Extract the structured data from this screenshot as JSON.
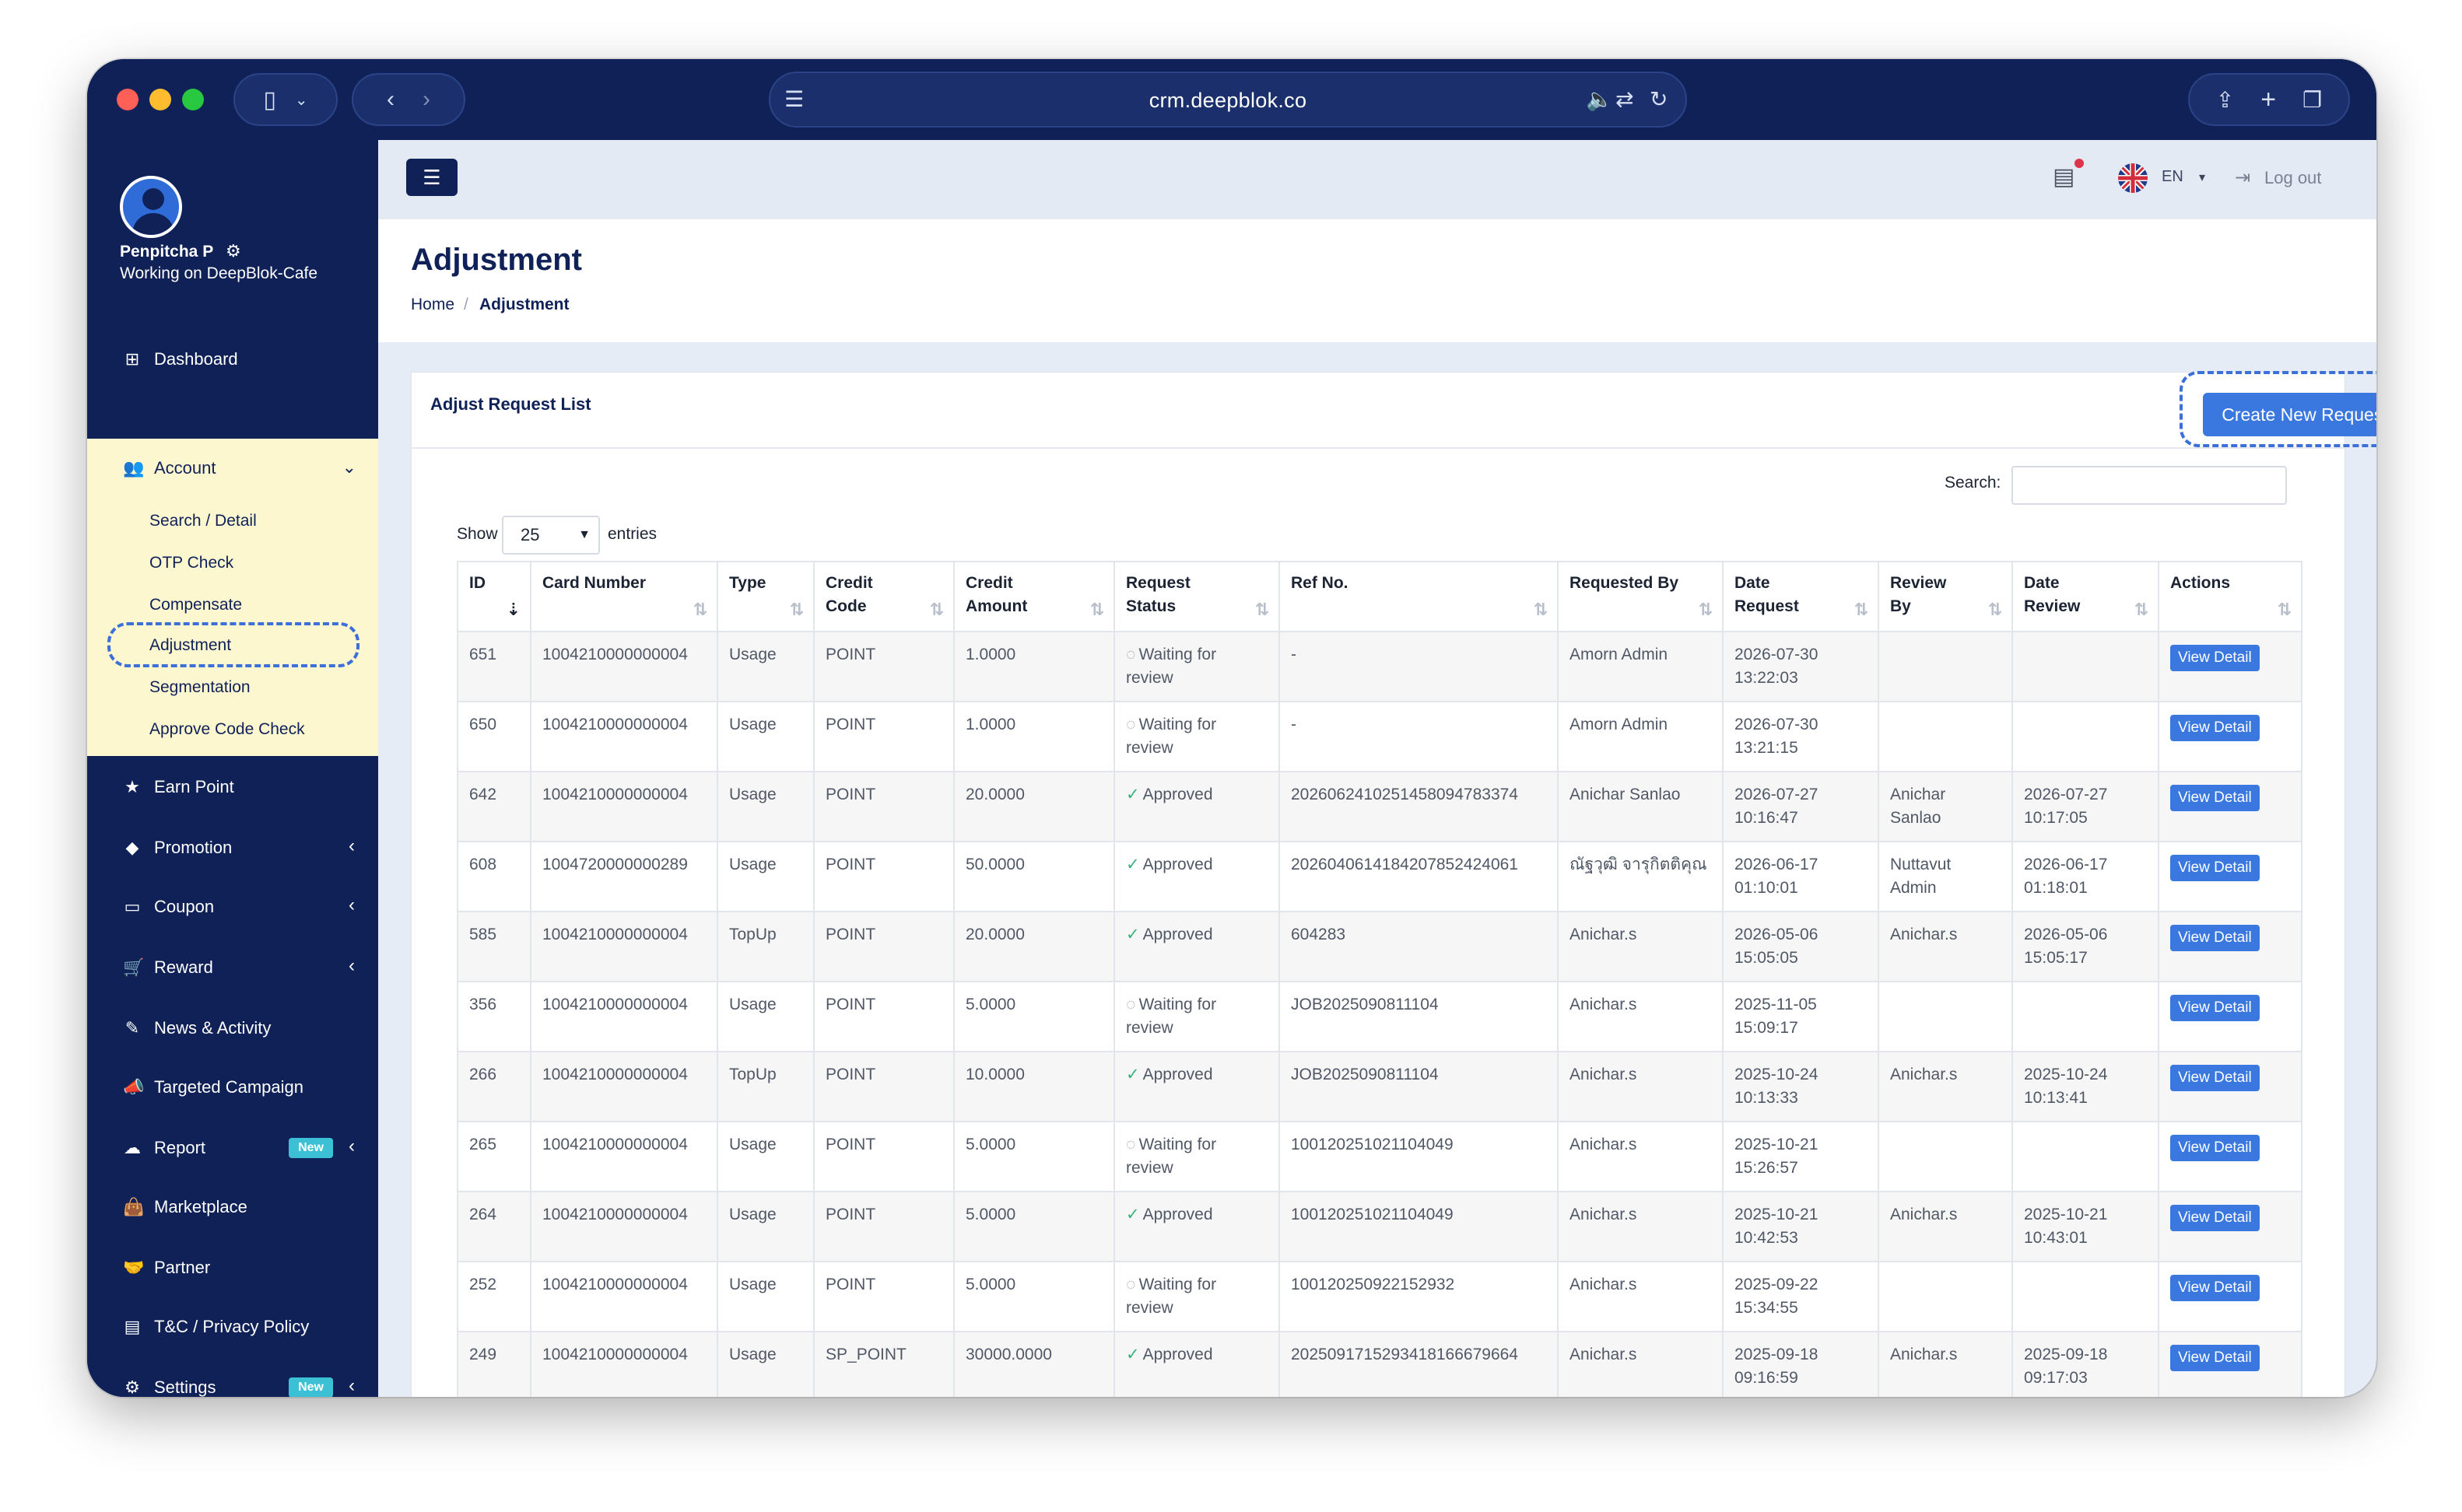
{
  "browser": {
    "url": "crm.deepblok.co"
  },
  "user": {
    "name": "Penpitcha P",
    "working_on": "Working on DeepBlok-Cafe"
  },
  "sidebar": {
    "dashboard": "Dashboard",
    "account": "Account",
    "account_items": [
      "Search / Detail",
      "OTP Check",
      "Compensate",
      "Adjustment",
      "Segmentation",
      "Approve Code Check"
    ],
    "items": [
      {
        "label": "Earn Point",
        "icon": "star-icon"
      },
      {
        "label": "Promotion",
        "icon": "tag-icon",
        "chevron": true
      },
      {
        "label": "Coupon",
        "icon": "ticket-icon",
        "chevron": true
      },
      {
        "label": "Reward",
        "icon": "cart-icon",
        "chevron": true
      },
      {
        "label": "News & Activity",
        "icon": "edit-icon"
      },
      {
        "label": "Targeted Campaign",
        "icon": "megaphone-icon"
      },
      {
        "label": "Report",
        "icon": "cloud-icon",
        "badge": "New",
        "chevron": true
      },
      {
        "label": "Marketplace",
        "icon": "bag-icon"
      },
      {
        "label": "Partner",
        "icon": "handshake-icon"
      },
      {
        "label": "T&C / Privacy Policy",
        "icon": "document-icon"
      },
      {
        "label": "Settings",
        "icon": "gear-icon",
        "badge": "New",
        "chevron": true
      }
    ]
  },
  "topbar": {
    "lang": "EN",
    "logout": "Log out"
  },
  "page": {
    "title": "Adjustment",
    "breadcrumb_home": "Home",
    "breadcrumb_current": "Adjustment"
  },
  "card": {
    "title": "Adjust Request List",
    "create_button": "Create New Request",
    "search_label": "Search:",
    "show_label": "Show",
    "entries_value": "25",
    "entries_label": "entries"
  },
  "table": {
    "columns": [
      "ID",
      "Card Number",
      "Type",
      "Credit Code",
      "Credit Amount",
      "Request Status",
      "Ref No.",
      "Requested By",
      "Date Request",
      "Review By",
      "Date Review",
      "Actions"
    ],
    "action_label": "View Detail",
    "rows": [
      {
        "id": "651",
        "card": "1004210000000004",
        "type": "Usage",
        "code": "POINT",
        "amount": "1.0000",
        "status": "Waiting for review",
        "ref": "-",
        "req_by": "Amorn Admin",
        "date_req": "2026-07-30 13:22:03",
        "review_by": "",
        "date_review": ""
      },
      {
        "id": "650",
        "card": "1004210000000004",
        "type": "Usage",
        "code": "POINT",
        "amount": "1.0000",
        "status": "Waiting for review",
        "ref": "-",
        "req_by": "Amorn Admin",
        "date_req": "2026-07-30 13:21:15",
        "review_by": "",
        "date_review": ""
      },
      {
        "id": "642",
        "card": "1004210000000004",
        "type": "Usage",
        "code": "POINT",
        "amount": "20.0000",
        "status": "Approved",
        "ref": "20260624102514580947833​74",
        "req_by": "Anichar Sanlao",
        "date_req": "2026-07-27 10:16:47",
        "review_by": "Anichar Sanlao",
        "date_review": "2026-07-27 10:17:05"
      },
      {
        "id": "608",
        "card": "1004720000000289",
        "type": "Usage",
        "code": "POINT",
        "amount": "50.0000",
        "status": "Approved",
        "ref": "2026040614184207852424061",
        "req_by": "ณัฐวุฒิ จารุกิตติคุณ",
        "date_req": "2026-06-17 01:10:01",
        "review_by": "Nuttavut Admin",
        "date_review": "2026-06-17 01:18:01"
      },
      {
        "id": "585",
        "card": "1004210000000004",
        "type": "TopUp",
        "code": "POINT",
        "amount": "20.0000",
        "status": "Approved",
        "ref": "604283",
        "req_by": "Anichar.s",
        "date_req": "2026-05-06 15:05:05",
        "review_by": "Anichar.s",
        "date_review": "2026-05-06 15:05:17"
      },
      {
        "id": "356",
        "card": "1004210000000004",
        "type": "Usage",
        "code": "POINT",
        "amount": "5.0000",
        "status": "Waiting for review",
        "ref": "JOB2025090811104",
        "req_by": "Anichar.s",
        "date_req": "2025-11-05 15:09:17",
        "review_by": "",
        "date_review": ""
      },
      {
        "id": "266",
        "card": "1004210000000004",
        "type": "TopUp",
        "code": "POINT",
        "amount": "10.0000",
        "status": "Approved",
        "ref": "JOB2025090811104",
        "req_by": "Anichar.s",
        "date_req": "2025-10-24 10:13:33",
        "review_by": "Anichar.s",
        "date_review": "2025-10-24 10:13:41"
      },
      {
        "id": "265",
        "card": "1004210000000004",
        "type": "Usage",
        "code": "POINT",
        "amount": "5.0000",
        "status": "Waiting for review",
        "ref": "100120251021104049",
        "req_by": "Anichar.s",
        "date_req": "2025-10-21 15:26:57",
        "review_by": "",
        "date_review": ""
      },
      {
        "id": "264",
        "card": "1004210000000004",
        "type": "Usage",
        "code": "POINT",
        "amount": "5.0000",
        "status": "Approved",
        "ref": "100120251021104049",
        "req_by": "Anichar.s",
        "date_req": "2025-10-21 10:42:53",
        "review_by": "Anichar.s",
        "date_review": "2025-10-21 10:43:01"
      },
      {
        "id": "252",
        "card": "1004210000000004",
        "type": "Usage",
        "code": "POINT",
        "amount": "5.0000",
        "status": "Waiting for review",
        "ref": "100120250922152932",
        "req_by": "Anichar.s",
        "date_req": "2025-09-22 15:34:55",
        "review_by": "",
        "date_review": ""
      },
      {
        "id": "249",
        "card": "1004210000000004",
        "type": "Usage",
        "code": "SP_POINT",
        "amount": "30000.0000",
        "status": "Approved",
        "ref": "2025091715293418166679664",
        "req_by": "Anichar.s",
        "date_req": "2025-09-18 09:16:59",
        "review_by": "Anichar.s",
        "date_review": "2025-09-18 09:17:03"
      }
    ]
  }
}
